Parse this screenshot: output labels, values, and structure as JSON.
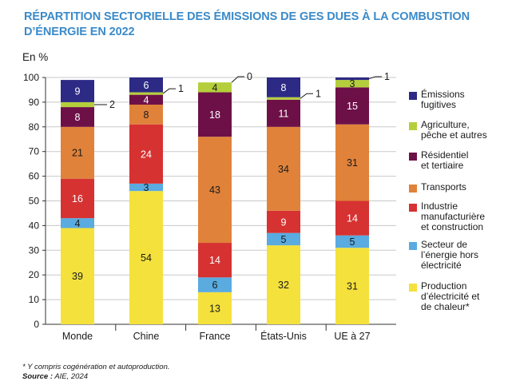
{
  "title": "RÉPARTITION SECTORIELLE DES ÉMISSIONS DE GES DUES À LA COMBUSTION D’ÉNERGIE EN 2022",
  "unit_label": "En %",
  "footnote": "* Y compris cogénération et autoproduction.",
  "source_label": "Source :",
  "source_value": "AIE, 2024",
  "chart_data": {
    "type": "bar",
    "stacked": true,
    "categories": [
      "Monde",
      "Chine",
      "France",
      "États-Unis",
      "UE à 27"
    ],
    "ylim": [
      0,
      100
    ],
    "yticks": [
      0,
      10,
      20,
      30,
      40,
      50,
      60,
      70,
      80,
      90,
      100
    ],
    "series": [
      {
        "name": "Production d’électricité et de chaleur*",
        "color": "#f4e13c",
        "values": [
          39,
          54,
          13,
          32,
          31
        ],
        "labels": [
          "39",
          "54",
          "13",
          "32",
          "31"
        ]
      },
      {
        "name": "Secteur de l’énergie hors électricité",
        "color": "#59abe0",
        "values": [
          4,
          3,
          6,
          5,
          5
        ],
        "labels": [
          "4",
          "3",
          "6",
          "5",
          "5"
        ]
      },
      {
        "name": "Industrie manufacturière et construction",
        "color": "#d63232",
        "values": [
          16,
          24,
          14,
          9,
          14
        ],
        "labels": [
          "16",
          "24",
          "14",
          "9",
          "14"
        ]
      },
      {
        "name": "Transports",
        "color": "#e0823a",
        "values": [
          21,
          8,
          43,
          34,
          31
        ],
        "labels": [
          "21",
          "8",
          "43",
          "34",
          "31"
        ]
      },
      {
        "name": "Résidentiel et tertiaire",
        "color": "#6e1048",
        "values": [
          8,
          4,
          18,
          11,
          15
        ],
        "labels": [
          "8",
          "4",
          "18",
          "11",
          "15"
        ]
      },
      {
        "name": "Agriculture, pêche et autres",
        "color": "#b5cf3c",
        "values": [
          2,
          1,
          4,
          1,
          3
        ],
        "labels": [
          "2",
          "1",
          "4",
          "1",
          "3"
        ]
      },
      {
        "name": "Émissions fugitives",
        "color": "#2c2a85",
        "values": [
          9,
          6,
          0,
          8,
          1
        ],
        "labels": [
          "9",
          "6",
          "0",
          "8",
          "1"
        ]
      }
    ],
    "legend": [
      {
        "label": "Émissions\nfugitives",
        "color": "#2c2a85"
      },
      {
        "label": "Agriculture,\npêche et autres",
        "color": "#b5cf3c"
      },
      {
        "label": "Résidentiel\net tertiaire",
        "color": "#6e1048"
      },
      {
        "label": "Transports",
        "color": "#e0823a"
      },
      {
        "label": "Industrie\nmanufacturière\net construction",
        "color": "#d63232"
      },
      {
        "label": "Secteur de\nl’énergie hors\nélectricité",
        "color": "#59abe0"
      },
      {
        "label": "Production\nd’électricité et\nde chaleur*",
        "color": "#f4e13c"
      }
    ]
  }
}
